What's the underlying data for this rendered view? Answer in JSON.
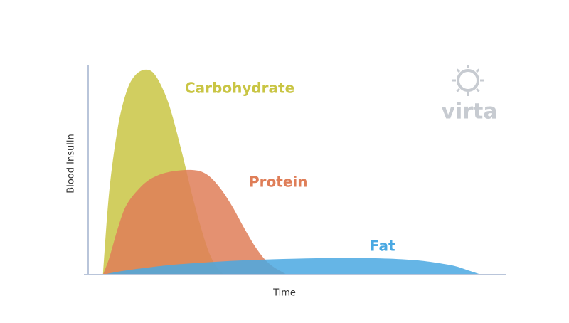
{
  "chart_data": {
    "type": "area",
    "x_label": "Time",
    "y_label": "Blood Insulin",
    "xlim": [
      0,
      100
    ],
    "ylim": [
      0,
      100
    ],
    "series": [
      {
        "name": "Carbohydrate",
        "color": "#c9c544",
        "x": [
          4.5,
          6,
          8,
          10,
          12,
          14.6,
          17,
          20,
          23,
          26,
          29,
          31,
          33
        ],
        "values": [
          0,
          40,
          70,
          87,
          95,
          98,
          95,
          82,
          60,
          35,
          14,
          5,
          0
        ]
      },
      {
        "name": "Protein",
        "color": "#df7e58",
        "x": [
          4.5,
          6,
          8,
          10,
          13,
          16,
          20,
          25.6,
          29,
          32,
          35,
          38,
          41,
          44,
          48
        ],
        "values": [
          0,
          8,
          22,
          33,
          41,
          46,
          49,
          50,
          48,
          42,
          33,
          22,
          12,
          5,
          0
        ]
      },
      {
        "name": "Fat",
        "color": "#4aa8e2",
        "x": [
          4.5,
          10,
          20,
          30,
          40,
          50,
          60,
          70,
          78,
          84,
          88,
          91,
          94
        ],
        "values": [
          0,
          2,
          4.5,
          6,
          7,
          7.6,
          8,
          7.8,
          7,
          5.5,
          4,
          2,
          0
        ]
      }
    ]
  },
  "logo": {
    "text": "virta"
  }
}
